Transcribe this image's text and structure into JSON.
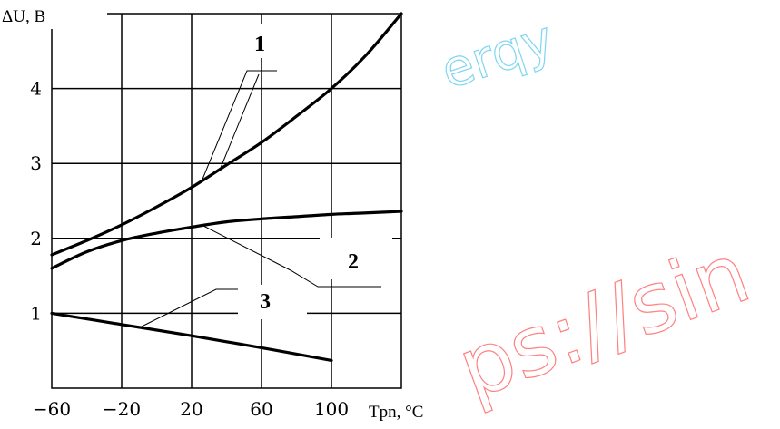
{
  "chart_data": {
    "type": "line",
    "title": "",
    "ylabel": "ΔU, В",
    "xlabel": "Tpn, °C",
    "xlim": [
      -60,
      140
    ],
    "ylim": [
      0,
      5
    ],
    "grid": true,
    "x_ticks": [
      -60,
      -20,
      20,
      60,
      100
    ],
    "x_tick_labels": [
      "−60",
      "−20",
      "20",
      "60",
      "100"
    ],
    "y_ticks": [
      1,
      2,
      3,
      4
    ],
    "y_tick_labels": [
      "1",
      "2",
      "3",
      "4"
    ],
    "series": [
      {
        "name": "1",
        "x": [
          -60,
          -40,
          -20,
          0,
          20,
          40,
          60,
          80,
          100,
          120,
          140
        ],
        "values": [
          1.78,
          1.97,
          2.18,
          2.42,
          2.68,
          2.98,
          3.28,
          3.63,
          4.0,
          4.45,
          5.0
        ]
      },
      {
        "name": "2",
        "x": [
          -60,
          -40,
          -20,
          0,
          20,
          40,
          60,
          80,
          100,
          120,
          140
        ],
        "values": [
          1.6,
          1.82,
          1.97,
          2.07,
          2.15,
          2.22,
          2.26,
          2.29,
          2.32,
          2.34,
          2.36
        ]
      },
      {
        "name": "3",
        "x": [
          -60,
          -20,
          20,
          60,
          100
        ],
        "values": [
          1.0,
          0.85,
          0.7,
          0.54,
          0.37
        ]
      }
    ]
  },
  "colors": {
    "line": "#000000",
    "grid": "#000000",
    "watermark": "#ff8080",
    "watermark_cyan": "#7fd6f0"
  },
  "watermark": {
    "text_top": "erqy",
    "text_bottom": "ps://sin"
  }
}
